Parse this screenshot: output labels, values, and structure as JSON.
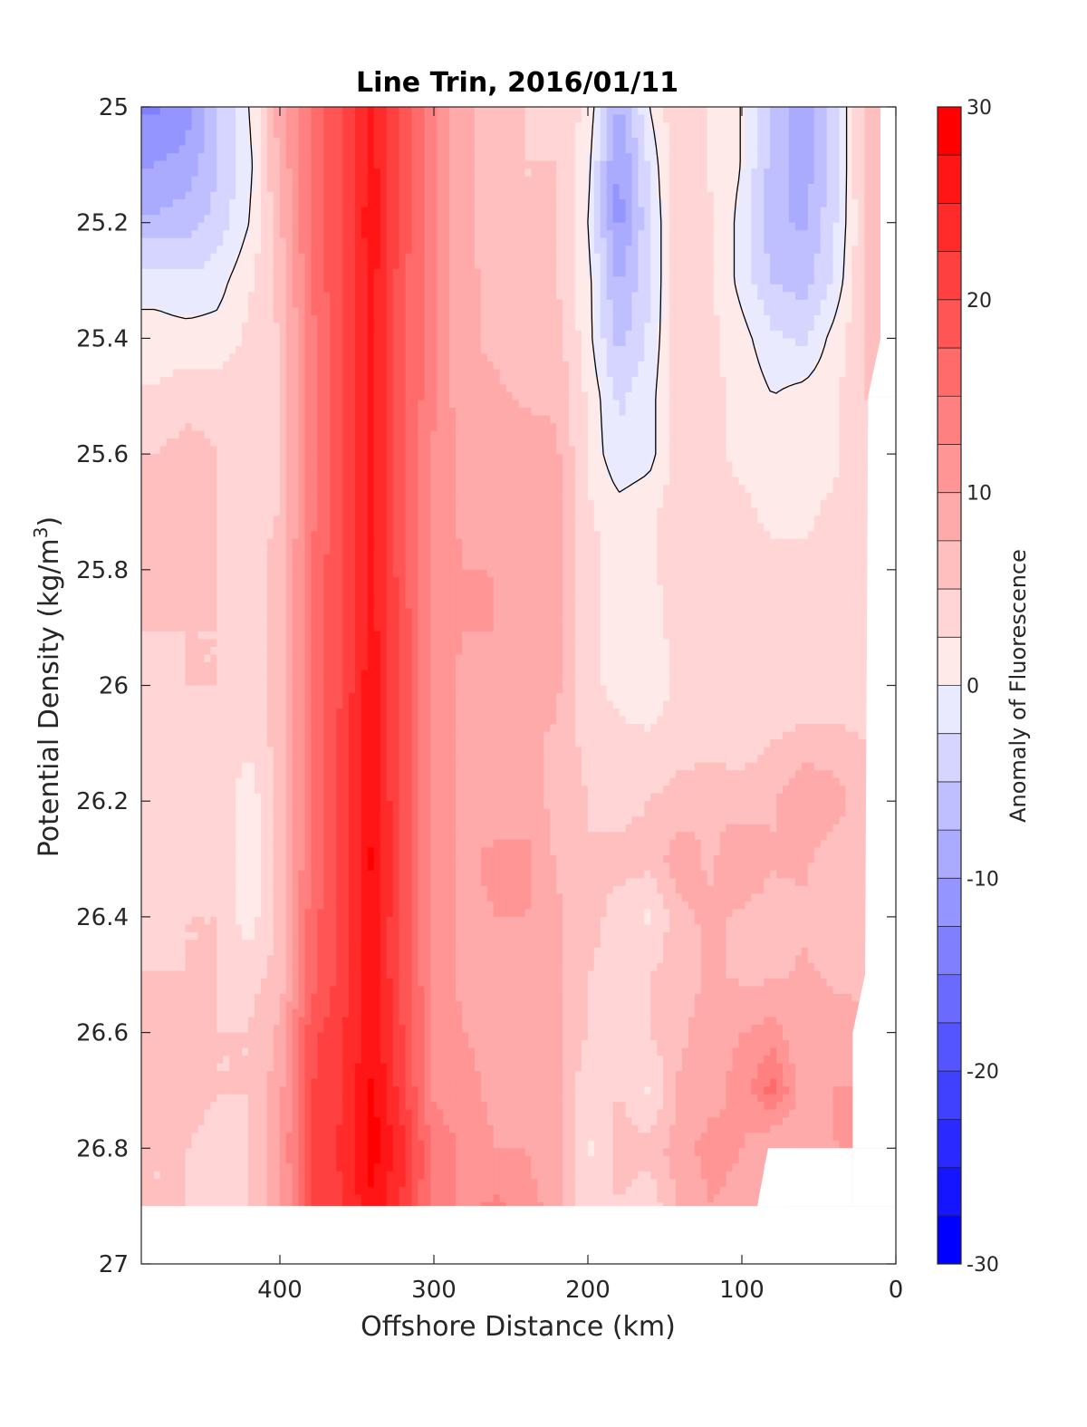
{
  "chart_data": {
    "type": "heatmap",
    "title": "Line Trin, 2016/01/11",
    "xlabel": "Offshore Distance (km)",
    "ylabel_main": "Potential Density (kg/m",
    "ylabel_sup": "3",
    "ylabel_close": ")",
    "colorbar_label": "Anomaly of Fluorescence",
    "xlim": [
      490,
      0
    ],
    "ylim": [
      25,
      27
    ],
    "y_reversed": true,
    "x_ticks": [
      400,
      300,
      200,
      100,
      0
    ],
    "x_tick_labels": [
      "400",
      "300",
      "200",
      "100",
      "0"
    ],
    "y_ticks": [
      25,
      25.2,
      25.4,
      25.6,
      25.8,
      26,
      26.2,
      26.4,
      26.6,
      26.8,
      27
    ],
    "y_tick_labels": [
      "25",
      "25.2",
      "25.4",
      "25.6",
      "25.8",
      "26",
      "26.2",
      "26.4",
      "26.6",
      "26.8",
      "27"
    ],
    "clim": [
      -30,
      30
    ],
    "color_ticks": [
      30,
      20,
      10,
      0,
      -10,
      -20,
      -30
    ],
    "color_tick_labels": [
      "30",
      "20",
      "10",
      "0",
      "-10",
      "-20",
      "-30"
    ],
    "contour_step": 2.5,
    "zero_contour_color": "#000000",
    "colors": {
      "positive": "#ff0000",
      "negative": "#0000ff",
      "neutral": "#ffffff"
    },
    "x": [
      480,
      460,
      440,
      420,
      400,
      380,
      360,
      340,
      320,
      300,
      280,
      260,
      240,
      220,
      200,
      180,
      160,
      140,
      120,
      100,
      80,
      60,
      40,
      20
    ],
    "y": [
      25.0,
      25.1,
      25.2,
      25.3,
      25.4,
      25.5,
      25.6,
      25.7,
      25.8,
      25.9,
      26.0,
      26.1,
      26.2,
      26.3,
      26.4,
      26.5,
      26.6,
      26.7,
      26.8,
      26.9
    ],
    "z": [
      [
        -13,
        -11,
        -5,
        0,
        9,
        15,
        20,
        26,
        19,
        13,
        8,
        6,
        5,
        4,
        2,
        -8,
        0,
        5,
        2,
        0,
        -6,
        -9,
        -4,
        6
      ],
      [
        -10,
        -9,
        -5,
        -1,
        8,
        15,
        20,
        26,
        19,
        13,
        8,
        6,
        5,
        5,
        1,
        -11,
        -2,
        5,
        2,
        0,
        -6,
        -9,
        -4,
        6
      ],
      [
        -7,
        -6,
        -4,
        0,
        7,
        15,
        20,
        27,
        19,
        13,
        8,
        6,
        5,
        5,
        0,
        -11,
        -3,
        5,
        3,
        -1,
        -7,
        -8,
        -3,
        5
      ],
      [
        -1,
        -2,
        -1,
        2,
        6,
        15,
        20,
        26,
        18,
        13,
        8,
        7,
        6,
        5,
        1,
        -8,
        -3,
        5,
        3,
        -1,
        -5,
        -6,
        -2,
        5
      ],
      [
        1,
        1,
        1,
        3,
        5,
        14,
        20,
        26,
        18,
        13,
        8,
        7,
        6,
        6,
        1,
        -6,
        -2,
        4,
        3,
        1,
        -2,
        -3,
        1,
        5
      ],
      [
        3,
        4,
        4,
        4,
        5,
        14,
        20,
        26,
        18,
        13,
        8,
        8,
        7,
        7,
        2,
        -3,
        -1,
        4,
        3,
        2,
        0,
        1,
        2,
        5
      ],
      [
        5,
        6,
        5,
        4,
        5,
        14,
        20,
        26,
        18,
        12,
        9,
        9,
        9,
        8,
        2,
        -2,
        -1,
        4,
        3,
        2,
        1,
        1,
        2,
        4
      ],
      [
        5,
        6,
        5,
        4,
        5,
        14,
        20,
        26,
        18,
        12,
        9,
        9,
        9,
        8,
        3,
        1,
        2,
        4,
        3,
        3,
        2,
        2,
        3,
        4
      ],
      [
        5,
        6,
        5,
        4,
        6,
        15,
        20,
        26,
        18,
        12,
        10,
        10,
        9,
        8,
        3,
        2,
        2,
        4,
        4,
        3,
        3,
        3,
        3,
        4
      ],
      [
        5,
        5,
        5,
        4,
        6,
        15,
        20,
        26,
        19,
        12,
        10,
        10,
        9,
        8,
        3,
        2,
        1,
        4,
        4,
        3,
        3,
        3,
        3,
        4
      ],
      [
        4,
        5,
        5,
        4,
        6,
        15,
        20,
        27,
        19,
        12,
        9,
        10,
        9,
        8,
        3,
        2,
        1,
        3,
        4,
        3,
        3,
        3,
        3,
        4
      ],
      [
        4,
        4,
        4,
        3,
        6,
        15,
        21,
        27,
        19,
        12,
        9,
        9,
        8,
        7,
        4,
        3,
        3,
        4,
        4,
        4,
        5,
        6,
        6,
        5
      ],
      [
        4,
        4,
        4,
        1,
        6,
        15,
        21,
        27,
        19,
        12,
        9,
        8,
        8,
        7,
        5,
        4,
        5,
        6,
        7,
        6,
        7,
        10,
        9,
        6
      ],
      [
        4,
        4,
        5,
        1,
        6,
        15,
        21,
        28,
        19,
        12,
        9,
        11,
        11,
        7,
        5,
        6,
        6,
        9,
        7,
        10,
        8,
        8,
        6,
        5
      ],
      [
        4,
        5,
        5,
        1,
        6,
        16,
        21,
        27,
        19,
        12,
        9,
        10,
        10,
        8,
        6,
        4,
        2,
        7,
        8,
        7,
        6,
        7,
        5,
        5
      ],
      [
        5,
        5,
        5,
        4,
        6,
        16,
        21,
        27,
        19,
        12,
        9,
        9,
        9,
        8,
        5,
        4,
        5,
        6,
        8,
        7,
        7,
        8,
        7,
        6
      ],
      [
        5,
        6,
        5,
        5,
        8,
        19,
        22,
        27,
        20,
        12,
        10,
        9,
        9,
        8,
        5,
        4,
        5,
        7,
        9,
        10,
        11,
        8,
        9,
        9
      ],
      [
        5,
        6,
        5,
        5,
        9,
        20,
        22,
        28,
        21,
        12,
        11,
        9,
        10,
        8,
        3,
        5,
        2,
        8,
        9,
        11,
        16,
        8,
        10,
        10
      ],
      [
        5,
        5,
        4,
        5,
        9,
        21,
        23,
        29,
        23,
        14,
        12,
        10,
        10,
        8,
        2,
        6,
        6,
        9,
        11,
        10,
        7,
        8,
        10,
        10
      ],
      [
        5,
        5,
        4,
        5,
        9,
        20,
        22,
        27,
        22,
        14,
        12,
        13,
        11,
        9,
        3,
        5,
        3,
        8,
        10,
        9,
        7,
        8,
        9,
        9
      ]
    ],
    "mask": [
      {
        "label": "no data below bottom boundary",
        "polygon": [
          [
            490,
            26.9
          ],
          [
            0,
            26.9
          ],
          [
            0,
            27
          ],
          [
            490,
            27
          ]
        ]
      },
      {
        "label": "no data near shore",
        "polygon": [
          [
            28,
            26.8
          ],
          [
            0,
            26.8
          ],
          [
            0,
            26.9
          ],
          [
            28,
            26.9
          ]
        ]
      },
      {
        "label": "no data notch",
        "polygon": [
          [
            83,
            26.8
          ],
          [
            28,
            26.8
          ],
          [
            28,
            26.9
          ],
          [
            90,
            26.9
          ]
        ]
      },
      {
        "label": "no data wedge",
        "polygon": [
          [
            18,
            25.5
          ],
          [
            0,
            25.5
          ],
          [
            0,
            26.8
          ],
          [
            28,
            26.8
          ],
          [
            28,
            26.6
          ],
          [
            20,
            26.5
          ]
        ]
      },
      {
        "label": "no data sliver",
        "polygon": [
          [
            10,
            25.0
          ],
          [
            0,
            25.0
          ],
          [
            0,
            25.5
          ],
          [
            18,
            25.5
          ],
          [
            10,
            25.4
          ]
        ]
      }
    ]
  }
}
